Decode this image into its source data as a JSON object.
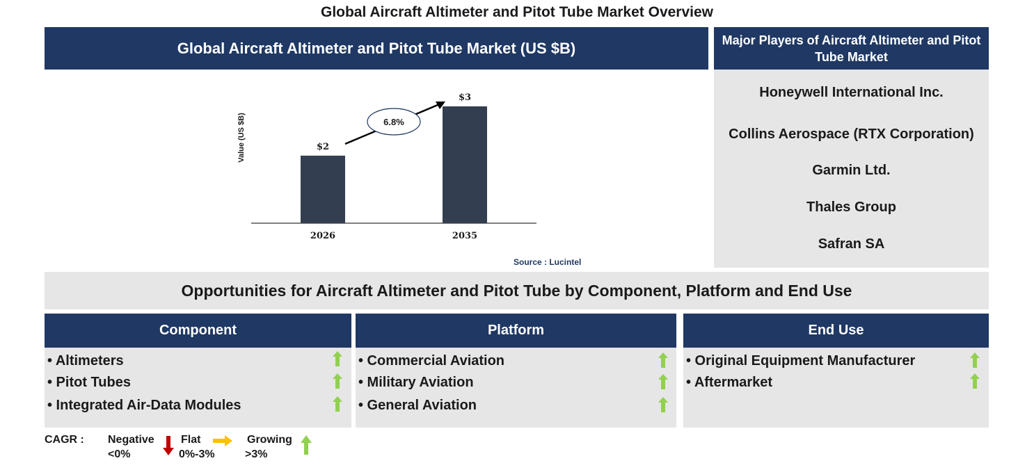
{
  "page_title": "Global Aircraft Altimeter and Pitot Tube Market Overview",
  "chart_header": "Global Aircraft Altimeter and Pitot Tube Market (US $B)",
  "chart_data": {
    "type": "bar",
    "categories": [
      "2026",
      "2035"
    ],
    "values": [
      2,
      3
    ],
    "value_labels": [
      "$2",
      "$3"
    ],
    "ylabel": "Value (US $B)",
    "cagr_label": "6.8%",
    "bar_color": "#333f50",
    "ylim": [
      0,
      3.5
    ]
  },
  "source": "Source : Lucintel",
  "players": {
    "title": "Major Players of Aircraft Altimeter and Pitot Tube Market",
    "items": [
      "Honeywell International Inc.",
      "Collins Aerospace (RTX Corporation)",
      "Garmin Ltd.",
      "Thales Group",
      "Safran SA"
    ]
  },
  "opportunities_title": "Opportunities for Aircraft Altimeter and Pitot Tube by Component, Platform and End Use",
  "segments": [
    {
      "title": "Component",
      "items": [
        "• Altimeters",
        "• Pitot Tubes",
        "• Integrated Air-Data Modules"
      ]
    },
    {
      "title": "Platform",
      "items": [
        "• Commercial Aviation",
        "• Military Aviation",
        "• General Aviation"
      ]
    },
    {
      "title": "End Use",
      "items": [
        "• Original Equipment Manufacturer",
        "• Aftermarket"
      ]
    }
  ],
  "legend": {
    "label": "CAGR :",
    "negative": "Negative",
    "negative_range": "<0%",
    "flat": "Flat",
    "flat_range": "0%-3%",
    "growing": "Growing",
    "growing_range": ">3%"
  },
  "colors": {
    "navy": "#1f3864",
    "panel_gray": "#e6e6e6",
    "growing_green": "#92d050",
    "flat_yellow": "#ffc000",
    "negative_red": "#c00000"
  }
}
